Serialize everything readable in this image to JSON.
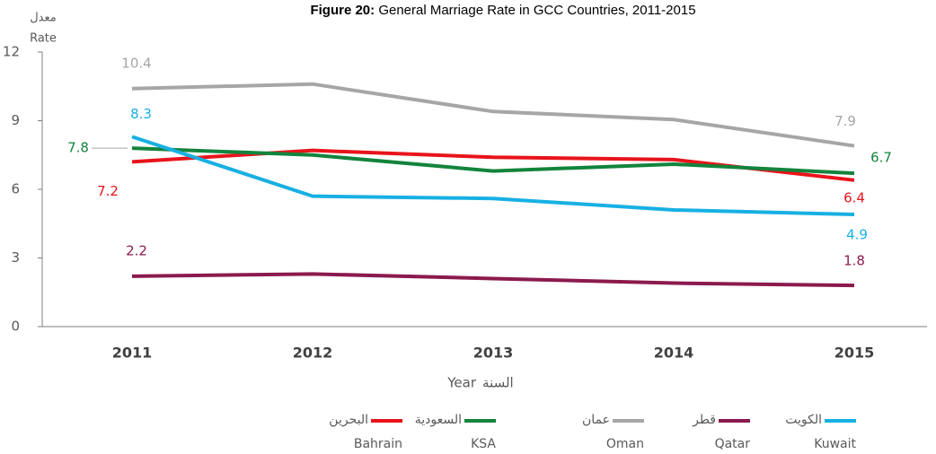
{
  "chart_data": {
    "type": "line",
    "title_label": "Figure 20:",
    "title": "General Marriage Rate in GCC Countries, 2011-2015",
    "ylabel_ar": "معدل",
    "ylabel": "Rate",
    "xlabel_ar": "السنة",
    "xlabel": "Year",
    "categories": [
      "2011",
      "2012",
      "2013",
      "2014",
      "2015"
    ],
    "ylim": [
      0,
      12
    ],
    "yticks": [
      0,
      3,
      6,
      9,
      12
    ],
    "grid": false,
    "series": [
      {
        "name": "Bahrain",
        "name_ar": "البحرين",
        "color": "#e8141b",
        "values": [
          7.2,
          7.7,
          7.4,
          7.3,
          6.4
        ],
        "value_labels": [
          "7.2",
          null,
          null,
          null,
          "6.4"
        ]
      },
      {
        "name": "KSA",
        "name_ar": "السعودية",
        "color": "#12843c",
        "values": [
          7.8,
          7.5,
          6.8,
          7.1,
          6.7
        ],
        "value_labels": [
          "7.8",
          null,
          null,
          null,
          "6.7"
        ]
      },
      {
        "name": "Oman",
        "name_ar": "عمان",
        "color": "#a6a6a6",
        "values": [
          10.4,
          10.6,
          9.4,
          9.05,
          7.9
        ],
        "value_labels": [
          "10.4",
          null,
          null,
          null,
          "7.9"
        ]
      },
      {
        "name": "Qatar",
        "name_ar": "قطر",
        "color": "#8b1a4e",
        "values": [
          2.2,
          2.3,
          2.1,
          1.9,
          1.8
        ],
        "value_labels": [
          "2.2",
          null,
          null,
          null,
          "1.8"
        ]
      },
      {
        "name": "Kuwait",
        "name_ar": "الكويت",
        "color": "#17b0e3",
        "values": [
          8.3,
          5.7,
          5.6,
          5.1,
          4.9
        ],
        "value_labels": [
          "8.3",
          null,
          null,
          null,
          "4.9"
        ]
      }
    ]
  }
}
